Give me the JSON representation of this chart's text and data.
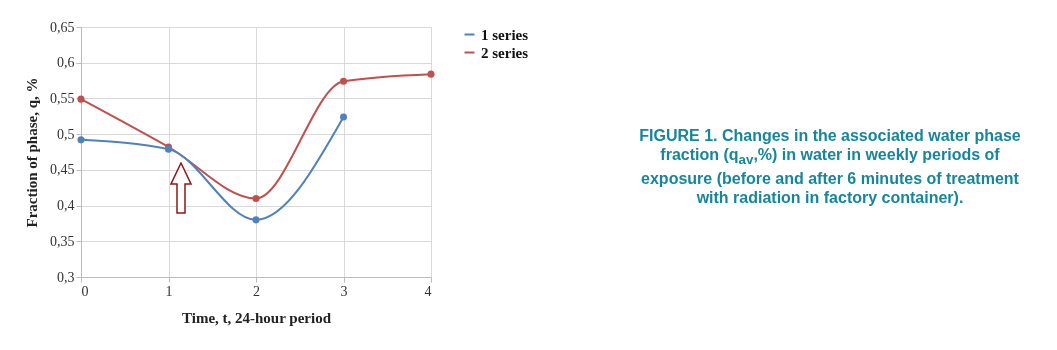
{
  "chart_data": {
    "type": "line",
    "xlabel": "Time, t, 24-hour period",
    "ylabel": "Fraction of phase, q, %",
    "x": [
      0,
      1,
      2,
      3,
      4
    ],
    "series": [
      {
        "name": "1 series",
        "color": "#4f81bd",
        "values": [
          0.492,
          0.479,
          0.38,
          0.524,
          null
        ]
      },
      {
        "name": "2 series",
        "color": "#c0504d",
        "values": [
          0.549,
          0.482,
          0.41,
          0.574,
          0.584
        ]
      }
    ],
    "xlim": [
      0,
      4
    ],
    "xticks": [
      0,
      1,
      2,
      3,
      4
    ],
    "ylim": [
      0.3,
      0.65
    ],
    "yticks": [
      {
        "value": 0.3,
        "label": "0,3"
      },
      {
        "value": 0.35,
        "label": "0,35"
      },
      {
        "value": 0.4,
        "label": "0,4"
      },
      {
        "value": 0.45,
        "label": "0,45"
      },
      {
        "value": 0.5,
        "label": "0,5"
      },
      {
        "value": 0.55,
        "label": "0,55"
      },
      {
        "value": 0.6,
        "label": "0,6"
      },
      {
        "value": 0.65,
        "label": "0,65"
      }
    ],
    "grid": true,
    "legend": "right",
    "marker": "circle",
    "line_style": "solid",
    "annotations": [
      "FIGURE 1. Changes in the associated water phase fraction (q$_{av}$,%) in water in weekly periods of exposure (before and after 6 minutes of treatment with radiation in factory container)."
    ]
  }
}
